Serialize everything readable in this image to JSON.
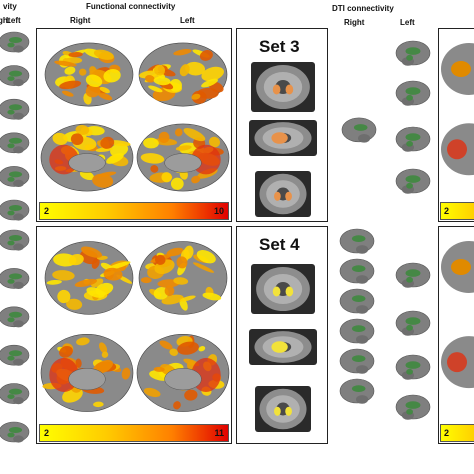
{
  "headers": {
    "left_title_fragment": "vity",
    "left_right": "Right",
    "left_left": "Left",
    "functional_title": "Functional connectivity",
    "functional_right": "Right",
    "functional_left": "Left",
    "dti_title": "DTI connectivity",
    "dti_right": "Right",
    "dti_left": "Left"
  },
  "rows": [
    {
      "set_label": "Set 3",
      "scale_min": "2",
      "scale_max": "10",
      "right_scale_min": "2",
      "blob_color": "#e8924a"
    },
    {
      "set_label": "Set 4",
      "scale_min": "2",
      "scale_max": "11",
      "right_scale_min": "2",
      "blob_color": "#f2e23a"
    }
  ],
  "colors": {
    "brain_gray": "#7f7f7f",
    "tract_green": "#3f8a3f",
    "heat_low": "#ffff00",
    "heat_high": "#e00000"
  }
}
